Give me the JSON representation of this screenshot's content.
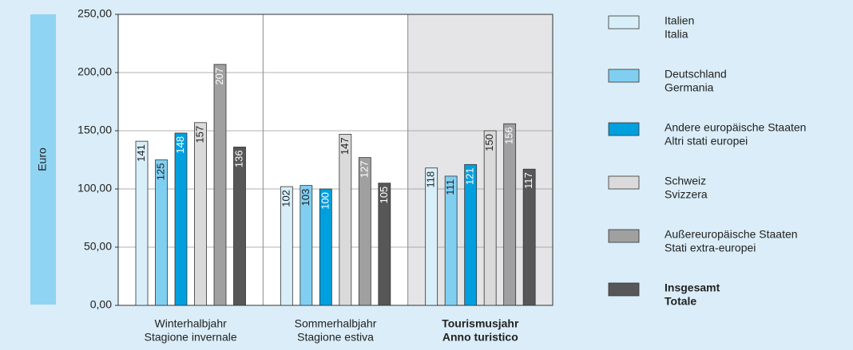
{
  "chart_data": {
    "type": "bar",
    "y_label": "Euro",
    "categories": [
      [
        "Winterhalbjahr",
        "Stagione invernale"
      ],
      [
        "Sommerhalbjahr",
        "Stagione estiva"
      ],
      [
        "Tourismusjahr",
        "Anno turistico"
      ]
    ],
    "highlight_category": 2,
    "highlight_series": 5,
    "series": [
      {
        "name": [
          "Italien",
          "Italia"
        ],
        "color": "#d8effa",
        "values": [
          141,
          102,
          118
        ]
      },
      {
        "name": [
          "Deutschland",
          "Germania"
        ],
        "color": "#80cff1",
        "values": [
          125,
          103,
          111
        ]
      },
      {
        "name": [
          "Andere europäische Staaten",
          "Altri stati europei"
        ],
        "color": "#00a0df",
        "values": [
          148,
          100,
          121
        ]
      },
      {
        "name": [
          "Schweiz",
          "Svizzera"
        ],
        "color": "#dadada",
        "values": [
          157,
          147,
          150
        ]
      },
      {
        "name": [
          "Außereuropäische Staaten",
          "Stati extra-europei"
        ],
        "color": "#a0a0a0",
        "values": [
          207,
          127,
          156
        ]
      },
      {
        "name": [
          "Insgesamt",
          "Totale"
        ],
        "color": "#575757",
        "values": [
          136,
          105,
          117
        ]
      }
    ],
    "ylim": [
      0,
      250
    ],
    "yticks": [
      {
        "value": 0,
        "label": "0,00"
      },
      {
        "value": 50,
        "label": "50,00"
      },
      {
        "value": 100,
        "label": "100,00"
      },
      {
        "value": 150,
        "label": "150,00"
      },
      {
        "value": 200,
        "label": "200,00"
      },
      {
        "value": 250,
        "label": "250,00"
      }
    ],
    "grid": true
  }
}
